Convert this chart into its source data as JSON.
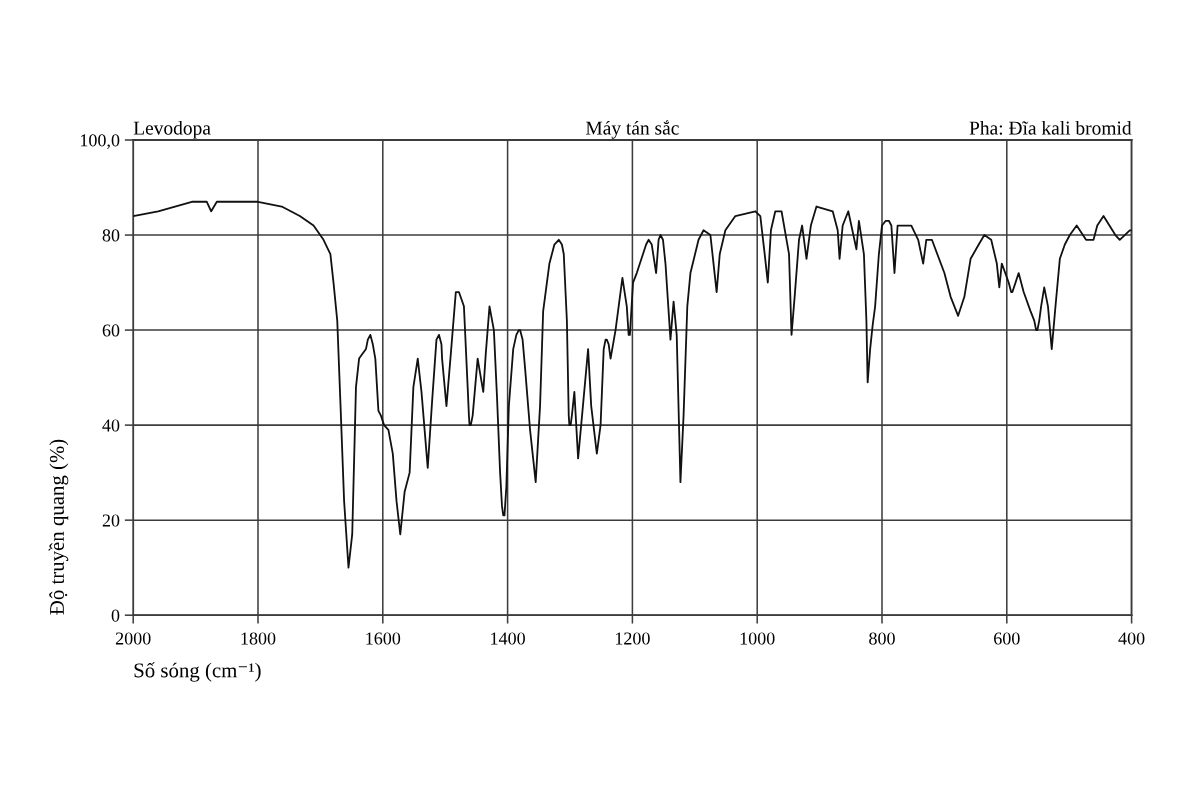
{
  "chart_data": {
    "type": "line",
    "title": "Levodopa",
    "annotations": [
      "Máy tán sắc",
      "Pha: Đĩa kali bromid"
    ],
    "xlabel": "Số sóng (cm⁻¹)",
    "ylabel": "Độ truyền quang (%)",
    "x": [
      2000,
      1960,
      1906,
      1882,
      1875,
      1866,
      1800,
      1762,
      1733,
      1711,
      1695,
      1684,
      1679,
      1673,
      1668,
      1662,
      1655,
      1649,
      1643,
      1638,
      1627,
      1624,
      1620,
      1616,
      1612,
      1607,
      1603,
      1598,
      1591,
      1584,
      1578,
      1572,
      1565,
      1557,
      1551,
      1544,
      1538,
      1528,
      1521,
      1514,
      1510,
      1506,
      1505,
      1498,
      1491,
      1483,
      1478,
      1470,
      1464,
      1462,
      1461,
      1459,
      1456,
      1448,
      1439,
      1435,
      1429,
      1422,
      1417,
      1412,
      1409,
      1407,
      1405,
      1404,
      1402,
      1398,
      1391,
      1386,
      1382,
      1380,
      1376,
      1372,
      1364,
      1355,
      1348,
      1343,
      1333,
      1325,
      1318,
      1313,
      1310,
      1305,
      1302,
      1301,
      1299,
      1297,
      1293,
      1287,
      1280,
      1271,
      1266,
      1257,
      1251,
      1246,
      1243,
      1241,
      1238,
      1235,
      1227,
      1216,
      1209,
      1206,
      1204,
      1199,
      1193,
      1183,
      1178,
      1174,
      1169,
      1162,
      1158,
      1155,
      1151,
      1147,
      1139,
      1134,
      1129,
      1123,
      1118,
      1112,
      1107,
      1094,
      1086,
      1075,
      1070,
      1065,
      1060,
      1051,
      1035,
      1003,
      995,
      988,
      983,
      978,
      971,
      961,
      949,
      945,
      940,
      933,
      928,
      921,
      914,
      905,
      879,
      871,
      868,
      863,
      854,
      841,
      837,
      829,
      825,
      823,
      819,
      815,
      811,
      805,
      800,
      794,
      789,
      785,
      780,
      775,
      753,
      742,
      734,
      729,
      720,
      700,
      690,
      678,
      668,
      658,
      645,
      636,
      625,
      616,
      612,
      608,
      597,
      593,
      591,
      581,
      573,
      562,
      556,
      553,
      551,
      548,
      545,
      540,
      534,
      528,
      522,
      515,
      507,
      499,
      488,
      473,
      461,
      455,
      445,
      426,
      419,
      403,
      400
    ],
    "series": [
      {
        "color": "#111111",
        "values": [
          84,
          85,
          87,
          87,
          85,
          87,
          87,
          86,
          84,
          82,
          79,
          76,
          70,
          62,
          45,
          24,
          10,
          17,
          48,
          54,
          56,
          58,
          59,
          57,
          54,
          43,
          42,
          40,
          39,
          34,
          24,
          17,
          26,
          30,
          48,
          54,
          47,
          31,
          45,
          58,
          59,
          57,
          54,
          44,
          55,
          68,
          68,
          65,
          48,
          42,
          40,
          40,
          42,
          54,
          47,
          55,
          65,
          60,
          46,
          30,
          23,
          21,
          21,
          23,
          27,
          44,
          56,
          59,
          60,
          60,
          58,
          52,
          39,
          28,
          44,
          64,
          74,
          78,
          79,
          78,
          76,
          62,
          42,
          40,
          40,
          42,
          47,
          33,
          43,
          56,
          44,
          34,
          40,
          56,
          58,
          58,
          57,
          54,
          60,
          71,
          65,
          59,
          59,
          70,
          72,
          76,
          78,
          79,
          78,
          72,
          79,
          80,
          79,
          74,
          58,
          66,
          59,
          28,
          42,
          65,
          72,
          79,
          81,
          80,
          74,
          68,
          76,
          81,
          84,
          85,
          84,
          76,
          70,
          81,
          85,
          85,
          76,
          59,
          67,
          79,
          82,
          75,
          82,
          86,
          85,
          81,
          75,
          82,
          85,
          77,
          83,
          76,
          62,
          49,
          56,
          61,
          65,
          76,
          82,
          83,
          83,
          82,
          72,
          82,
          82,
          79,
          74,
          79,
          79,
          72,
          67,
          63,
          67,
          75,
          78,
          80,
          79,
          74,
          69,
          74,
          70,
          68,
          68,
          72,
          68,
          64,
          62,
          60,
          60,
          62,
          65,
          69,
          65,
          56,
          65,
          75,
          78,
          80,
          82,
          79,
          79,
          82,
          84,
          80,
          79,
          81,
          81
        ]
      }
    ],
    "xlim": [
      2000,
      400
    ],
    "ylim": [
      0,
      100
    ],
    "xticks": [
      2000,
      1800,
      1600,
      1400,
      1200,
      1000,
      800,
      600,
      400
    ],
    "yticks": [
      0,
      20,
      40,
      60,
      80,
      {
        "value": 100,
        "label": "100,0"
      }
    ],
    "grid": true
  }
}
